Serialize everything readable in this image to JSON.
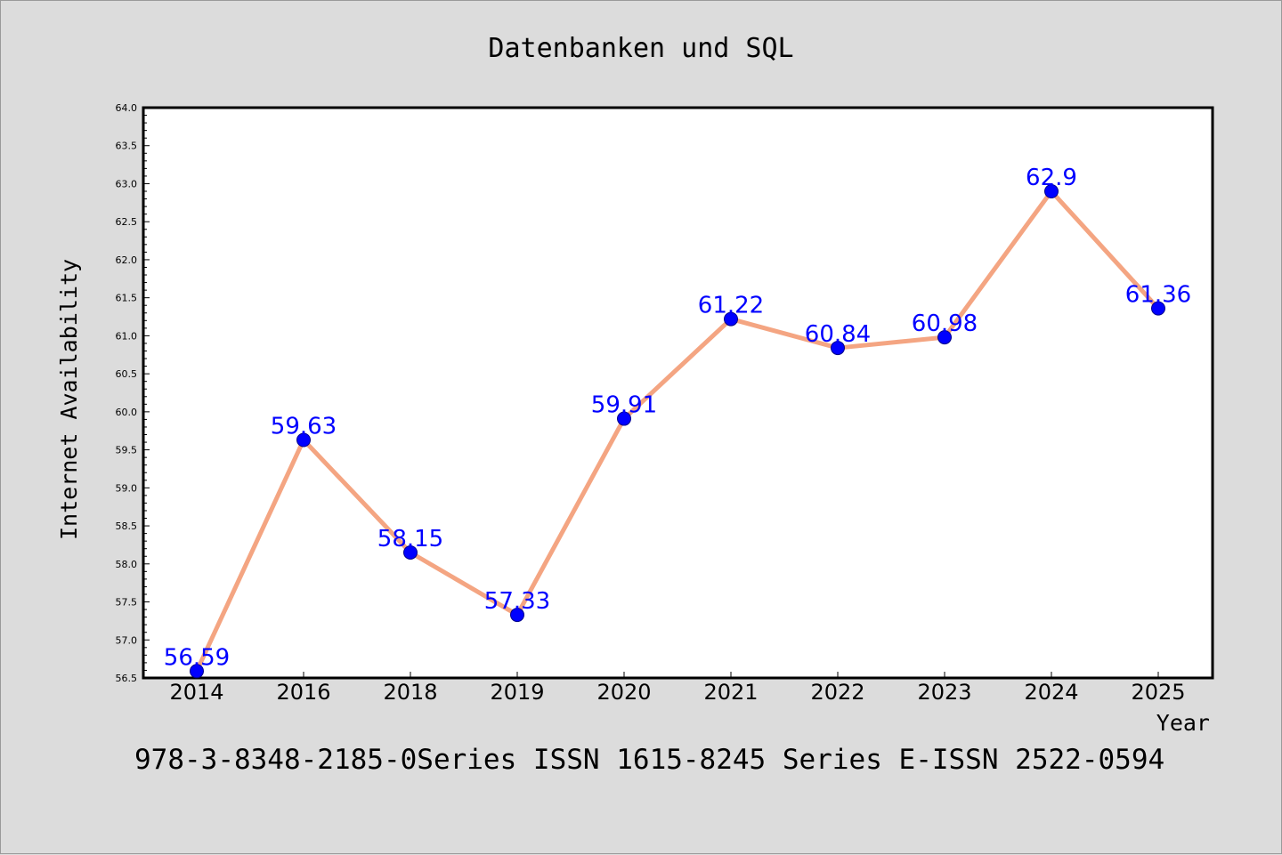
{
  "chart_data": {
    "type": "line",
    "title": "Datenbanken und SQL",
    "xlabel": "Year",
    "ylabel": "Internet Availability",
    "categories": [
      "2014",
      "2016",
      "2018",
      "2019",
      "2020",
      "2021",
      "2022",
      "2023",
      "2024",
      "2025"
    ],
    "series": [
      {
        "values": [
          56.59,
          59.63,
          58.15,
          57.33,
          59.91,
          61.22,
          60.84,
          60.98,
          62.9,
          61.36
        ],
        "line_color": "#f4a582",
        "marker_color": "#0000ff"
      }
    ],
    "data_labels": [
      "56.59",
      "59.63",
      "58.15",
      "57.33",
      "59.91",
      "61.22",
      "60.84",
      "60.98",
      "62.9",
      "61.36"
    ],
    "ylim": [
      56.5,
      64.0
    ],
    "yticks": [
      "56.5",
      "57.0",
      "57.5",
      "58.0",
      "58.5",
      "59.0",
      "59.5",
      "60.0",
      "60.5",
      "61.0",
      "61.5",
      "62.0",
      "62.5",
      "63.0",
      "63.5",
      "64.0"
    ],
    "grid": false,
    "legend": "none",
    "label_color": "#0000ff"
  },
  "caption": "978-3-8348-2185-0Series ISSN 1615-8245 Series E-ISSN 2522-0594"
}
